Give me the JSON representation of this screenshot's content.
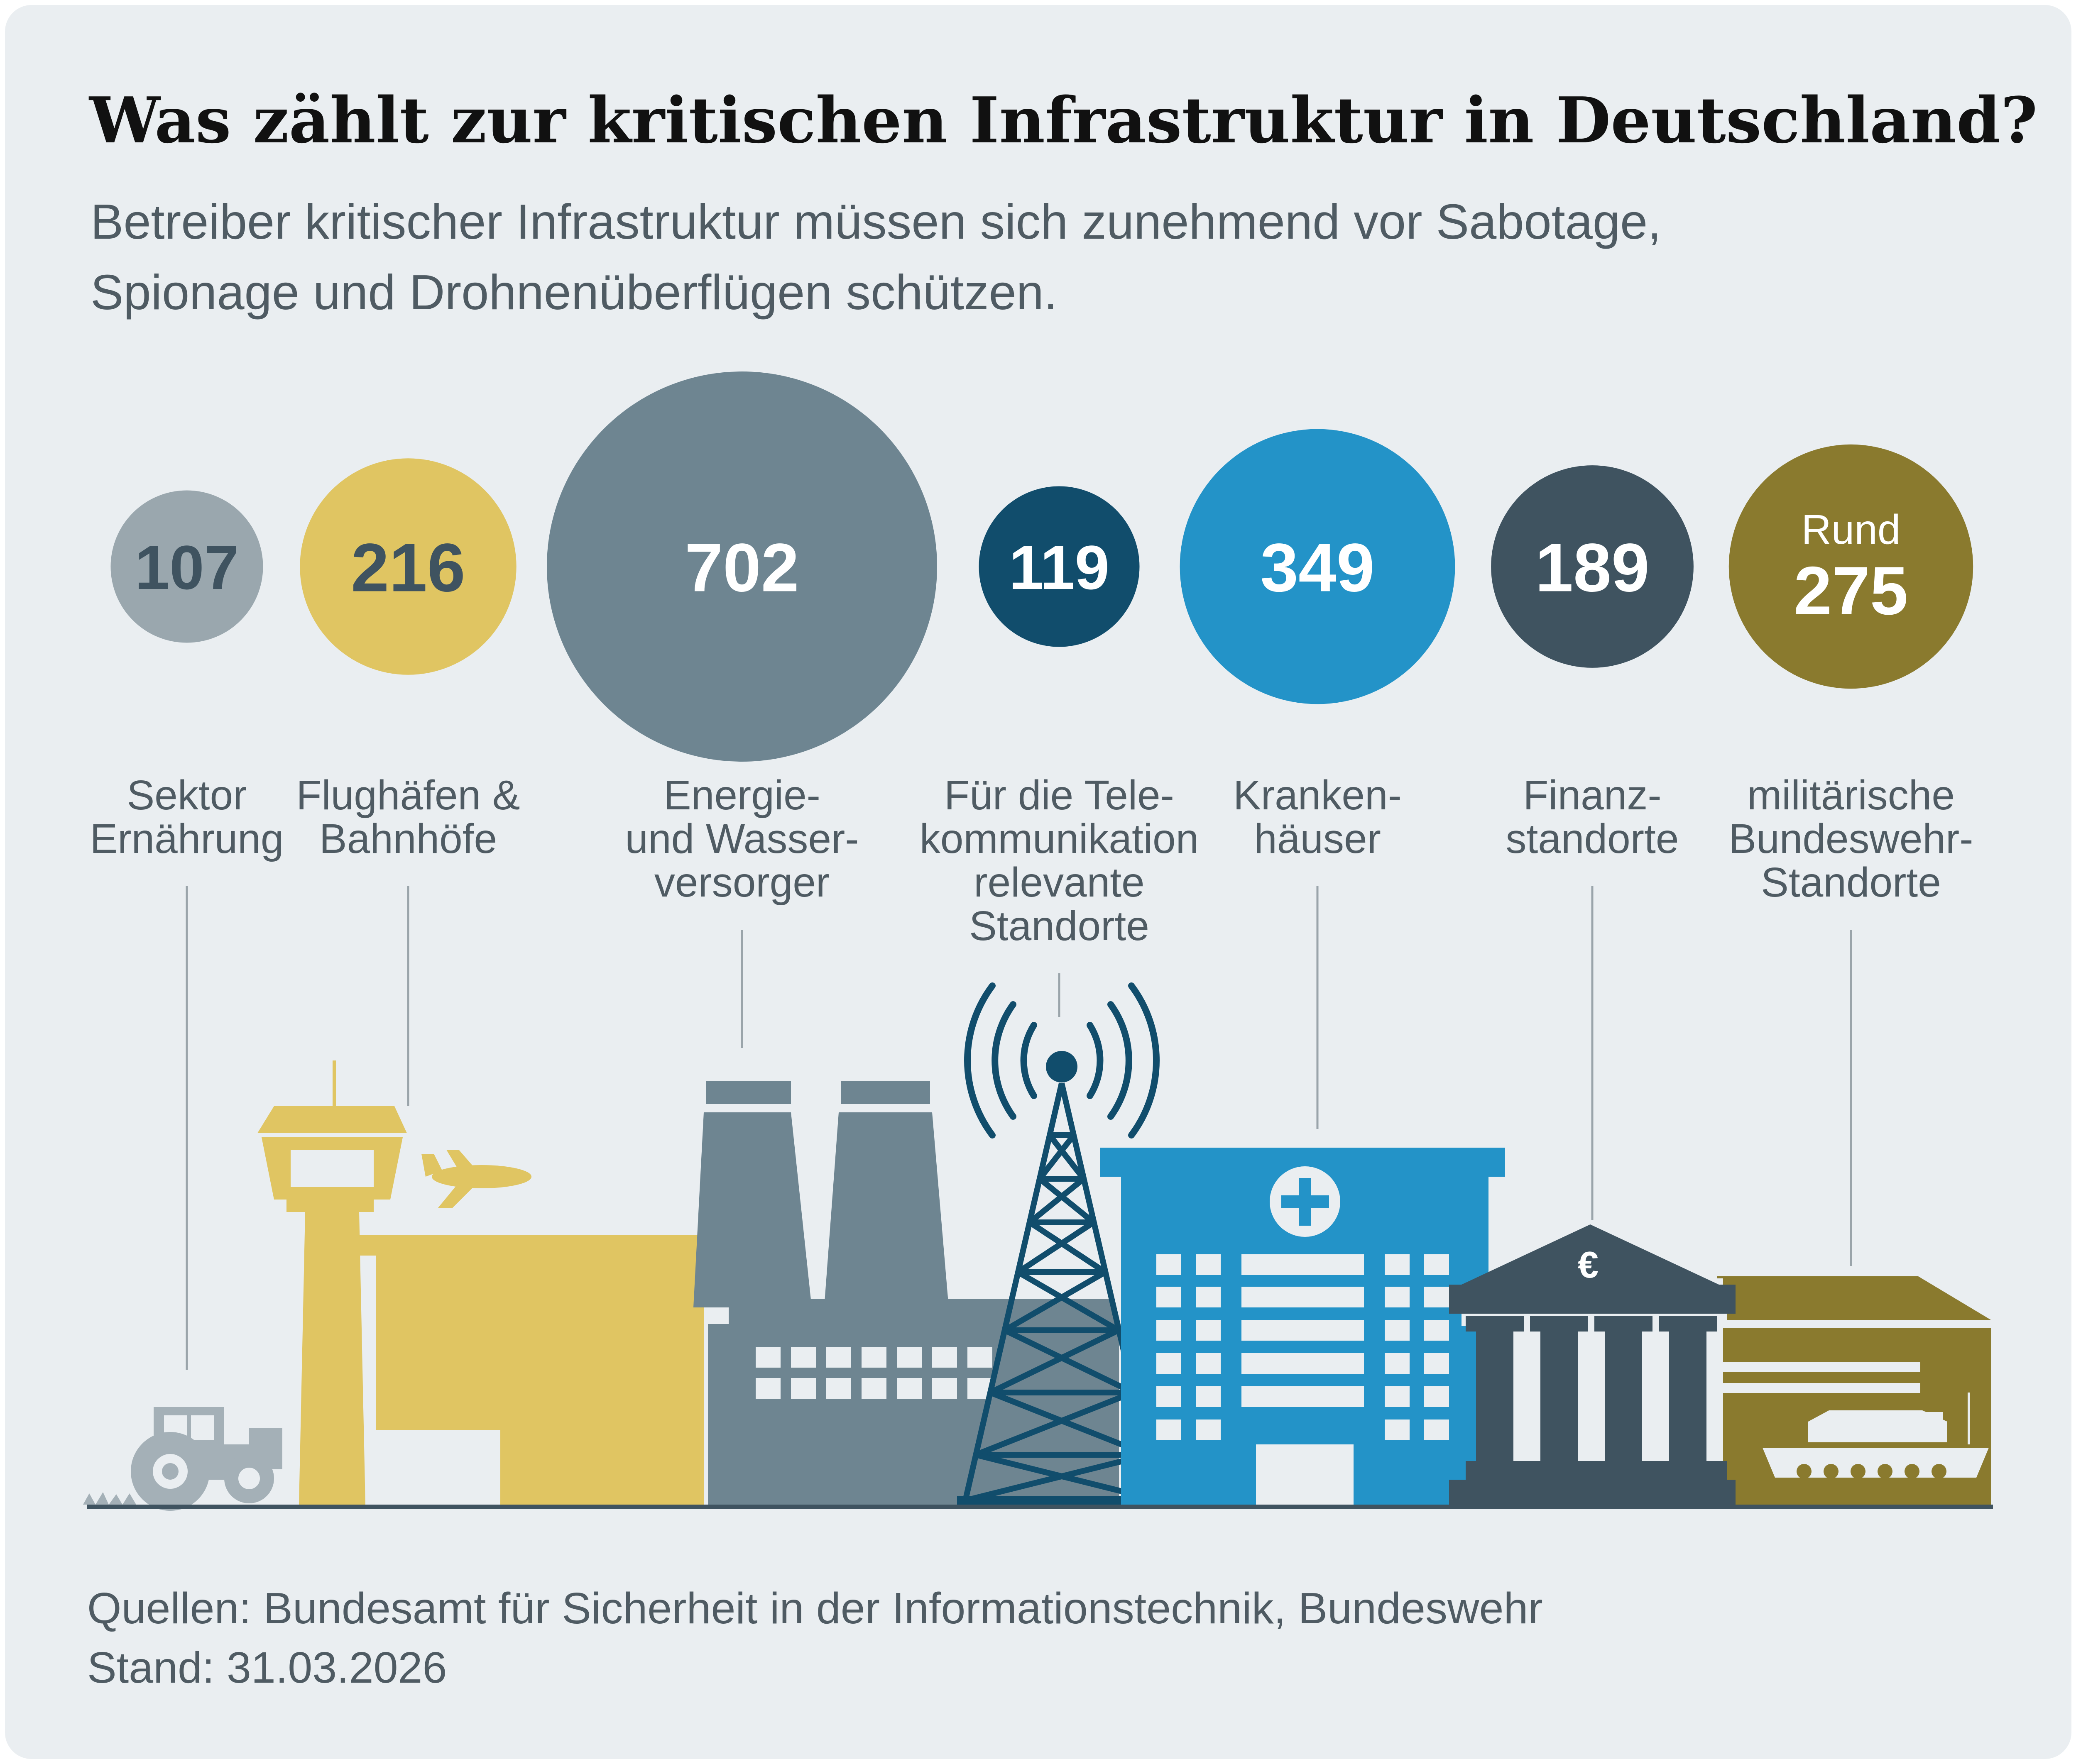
{
  "title": "Was zählt zur kritischen Infrastruktur in Deutschland?",
  "subtitle_line1": "Betreiber kritischer Infrastruktur müssen sich zunehmend vor Sabotage,",
  "subtitle_line2": "Spionage und Drohnenüberflügen schützen.",
  "footer": {
    "sources": "Quellen: Bundesamt für Sicherheit in der Informationstechnik, Bundeswehr",
    "date": "Stand: 31.03.2026"
  },
  "chart_data": {
    "type": "bubble",
    "categories": [
      {
        "label_lines": [
          "Sektor",
          "Ernährung"
        ],
        "value": 107,
        "display": "107",
        "prefix": "",
        "color": "#9aa7ae",
        "text_color": "#3f5360",
        "icon": "tractor-icon"
      },
      {
        "label_lines": [
          "Flughäfen &",
          "Bahnhöfe"
        ],
        "value": 216,
        "display": "216",
        "prefix": "",
        "color": "#e0c562",
        "text_color": "#3f5360",
        "icon": "airport-icon"
      },
      {
        "label_lines": [
          "Energie-",
          "und Wasser-",
          "versorger"
        ],
        "value": 702,
        "display": "702",
        "prefix": "",
        "color": "#6e8591",
        "text_color": "#ffffff",
        "icon": "power-plant-icon"
      },
      {
        "label_lines": [
          "Für die Tele-",
          "kommunikation",
          "relevante",
          "Standorte"
        ],
        "value": 119,
        "display": "119",
        "prefix": "",
        "color": "#114d6c",
        "text_color": "#ffffff",
        "icon": "radio-tower-icon"
      },
      {
        "label_lines": [
          "Kranken-",
          "häuser"
        ],
        "value": 349,
        "display": "349",
        "prefix": "",
        "color": "#2393c8",
        "text_color": "#ffffff",
        "icon": "hospital-icon"
      },
      {
        "label_lines": [
          "Finanz-",
          "standorte"
        ],
        "value": 189,
        "display": "189",
        "prefix": "",
        "color": "#3f5360",
        "text_color": "#ffffff",
        "icon": "bank-icon"
      },
      {
        "label_lines": [
          "militärische",
          "Bundeswehr-",
          "Standorte"
        ],
        "value": 275,
        "display": "275",
        "prefix": "Rund",
        "color": "#8a7a2e",
        "text_color": "#ffffff",
        "icon": "military-base-icon"
      }
    ]
  }
}
